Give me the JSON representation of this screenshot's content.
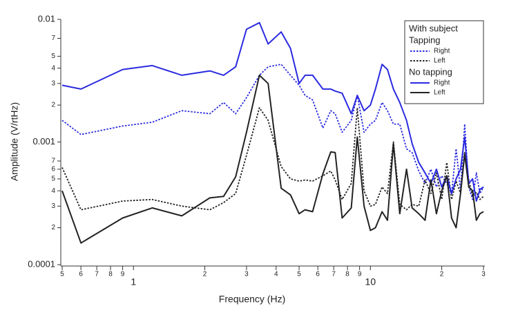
{
  "chart_data": {
    "type": "line",
    "log_x": true,
    "log_y": true,
    "x_label": "Frequency (Hz)",
    "y_label": "Amplitude (V/rtHz)",
    "legend_title": "With subject",
    "legend_position": "upper right",
    "x": [
      0.5,
      0.6,
      0.9,
      1.2,
      1.6,
      2.1,
      2.4,
      2.7,
      3.0,
      3.4,
      3.7,
      4.2,
      4.6,
      5.0,
      5.3,
      5.7,
      6.3,
      6.8,
      7.1,
      7.6,
      8.3,
      8.8,
      9.4,
      10,
      10.5,
      11.2,
      11.8,
      12.5,
      13.3,
      14.2,
      15,
      16,
      17,
      18,
      19,
      20,
      21,
      22,
      23,
      24,
      25,
      26,
      27,
      28,
      29,
      30
    ],
    "xlim": [
      0.5,
      30
    ],
    "xticks": [
      {
        "value": 0.5,
        "label": "5"
      },
      {
        "value": 0.6,
        "label": "6"
      },
      {
        "value": 0.7,
        "label": "7"
      },
      {
        "value": 0.8,
        "label": "8"
      },
      {
        "value": 0.9,
        "label": "9"
      },
      1,
      {
        "value": 2,
        "label": "2"
      },
      {
        "value": 3,
        "label": "3"
      },
      {
        "value": 4,
        "label": "4"
      },
      {
        "value": 5,
        "label": "5"
      },
      {
        "value": 6,
        "label": "6"
      },
      {
        "value": 7,
        "label": "7"
      },
      {
        "value": 8,
        "label": "8"
      },
      {
        "value": 9,
        "label": "9"
      },
      10,
      {
        "value": 20,
        "label": "2"
      },
      {
        "value": 30,
        "label": "3"
      }
    ],
    "ylim": [
      0.0001,
      0.01
    ],
    "yticks": [
      0.0001,
      {
        "value": 0.0002,
        "label": "2"
      },
      {
        "value": 0.0003,
        "label": "3"
      },
      {
        "value": 0.0004,
        "label": "4"
      },
      {
        "value": 0.0005,
        "label": "5"
      },
      {
        "value": 0.0006,
        "label": "6"
      },
      {
        "value": 0.0007,
        "label": "7"
      },
      0.001,
      {
        "value": 0.002,
        "label": "2"
      },
      {
        "value": 0.003,
        "label": "3"
      },
      {
        "value": 0.004,
        "label": "4"
      },
      {
        "value": 0.005,
        "label": "5"
      },
      {
        "value": 0.007,
        "label": "7"
      },
      0.01
    ],
    "legend_groups": [
      "Tapping",
      "No tapping"
    ],
    "series": [
      {
        "name": "Right",
        "group": 0,
        "color": "#2a2ae0",
        "dash": "dotted",
        "values": [
          0.0015,
          0.00115,
          0.00135,
          0.00145,
          0.0018,
          0.0017,
          0.0021,
          0.0017,
          0.0023,
          0.0035,
          0.0041,
          0.0043,
          0.0035,
          0.0029,
          0.0024,
          0.0022,
          0.0013,
          0.0018,
          0.0017,
          0.0012,
          0.0015,
          0.0024,
          0.0012,
          0.0014,
          0.0015,
          0.0021,
          0.0018,
          0.0014,
          0.0014,
          0.00088,
          0.00082,
          0.00058,
          0.00046,
          0.0006,
          0.00043,
          0.00053,
          0.00046,
          0.00038,
          0.00088,
          0.0004,
          0.0014,
          0.00043,
          0.00034,
          0.00056,
          0.00038,
          0.00043
        ]
      },
      {
        "name": "Left",
        "group": 0,
        "color": "#222222",
        "dash": "dotted",
        "values": [
          0.00062,
          0.00028,
          0.00033,
          0.00034,
          0.0003,
          0.00028,
          0.00032,
          0.00038,
          0.00078,
          0.0019,
          0.0015,
          0.00063,
          0.0005,
          0.00048,
          0.00049,
          0.00048,
          0.00053,
          0.00058,
          0.00049,
          0.00034,
          0.00046,
          0.0019,
          0.0004,
          0.0003,
          0.00031,
          0.00043,
          0.00038,
          0.001,
          0.00031,
          0.00028,
          0.00031,
          0.0003,
          0.00049,
          0.00038,
          0.00056,
          0.00034,
          0.00068,
          0.00034,
          0.00048,
          0.00038,
          0.00082,
          0.00049,
          0.00036,
          0.00039,
          0.00034,
          0.00036
        ]
      },
      {
        "name": "Right",
        "group": 1,
        "color": "#2a2ae0",
        "dash": "solid",
        "values": [
          0.0029,
          0.0027,
          0.0039,
          0.0042,
          0.0035,
          0.0038,
          0.0035,
          0.0041,
          0.0083,
          0.0094,
          0.0063,
          0.0079,
          0.0058,
          0.003,
          0.0035,
          0.0035,
          0.0027,
          0.0027,
          0.0026,
          0.0025,
          0.0017,
          0.0024,
          0.0018,
          0.002,
          0.0027,
          0.0043,
          0.0039,
          0.0027,
          0.0021,
          0.0015,
          0.00097,
          0.00068,
          0.00056,
          0.00046,
          0.0006,
          0.00043,
          0.00053,
          0.00038,
          0.0005,
          0.0006,
          0.0011,
          0.00046,
          0.0005,
          0.00033,
          0.00041,
          0.00043
        ]
      },
      {
        "name": "Left",
        "group": 1,
        "color": "#222222",
        "dash": "solid",
        "values": [
          0.0004,
          0.00015,
          0.00024,
          0.00029,
          0.00025,
          0.00035,
          0.00036,
          0.00052,
          0.0012,
          0.0035,
          0.003,
          0.00042,
          0.00037,
          0.00026,
          0.00028,
          0.00027,
          0.00055,
          0.00083,
          0.00082,
          0.00024,
          0.00029,
          0.0011,
          0.0003,
          0.00019,
          0.0002,
          0.00027,
          0.00023,
          0.00097,
          0.00026,
          0.0006,
          0.00029,
          0.00026,
          0.00023,
          0.00049,
          0.00026,
          0.0004,
          0.00053,
          0.00024,
          0.0002,
          0.00038,
          0.0008,
          0.00043,
          0.0004,
          0.00023,
          0.00026,
          0.00027
        ]
      }
    ]
  }
}
